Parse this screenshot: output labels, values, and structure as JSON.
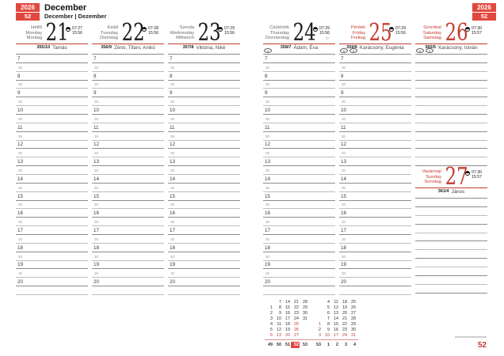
{
  "colors": {
    "accent_red": "#c43a2e",
    "box_red": "#e2473e"
  },
  "header_left": {
    "year": "2026",
    "week": "52",
    "month_title": "December",
    "month_subtitle": "December | Dezember"
  },
  "header_right": {
    "year": "2026",
    "week": "52"
  },
  "footer": {
    "page_number": "52"
  },
  "grid": {
    "hours": [
      "7",
      "8",
      "9",
      "10",
      "11",
      "12",
      "13",
      "14",
      "15",
      "16",
      "17",
      "18",
      "19",
      "20"
    ],
    "half_label": "30"
  },
  "days": [
    {
      "names": "Hétfő\nMonday\nMontag",
      "number": "21",
      "sunrise": "07:27",
      "sunset": "15:56",
      "ordinal": "355/10",
      "name_day": "Tamás",
      "holiday": false
    },
    {
      "names": "Kedd\nTuesday\nDienstag",
      "number": "22",
      "sunrise": "07:28",
      "sunset": "15:56",
      "ordinal": "356/9",
      "name_day": "Zénó, Tifani, Anikó",
      "holiday": false
    },
    {
      "names": "Szerda\nWednesday\nMittwoch",
      "number": "23",
      "sunrise": "07:29",
      "sunset": "15:56",
      "ordinal": "357/8",
      "name_day": "Viktória, Niké",
      "holiday": false
    },
    {
      "names": "Csütörtök\nThursday\nDonnerstag",
      "number": "24",
      "sunrise": "07:29",
      "sunset": "15:56",
      "ordinal": "358/7",
      "name_day": "Ádám, Éva",
      "holiday": false,
      "moon_symbol": "○",
      "markers": 1
    },
    {
      "names": "Péntek\nFriday\nFreitag",
      "number": "25",
      "sunrise": "07:29",
      "sunset": "15:56",
      "ordinal": "359/6",
      "name_day": "Karácsony, Eugénia",
      "holiday": true,
      "markers": 2
    },
    {
      "names": "Szombat\nSaturday\nSamstag",
      "number": "26",
      "sunrise": "07:30",
      "sunset": "15:57",
      "ordinal": "360/5",
      "name_day": "Karácsony, István",
      "holiday": true,
      "markers": 2
    },
    {
      "names": "Vasárnap\nSunday\nSonntag",
      "number": "27",
      "sunrise": "07:30",
      "sunset": "15:57",
      "ordinal": "361/4",
      "name_day": "János",
      "holiday": true
    }
  ],
  "mini_calendar": {
    "months": [
      {
        "rows": [
          [
            "",
            "7",
            "14",
            "21",
            "28"
          ],
          [
            "1",
            "8",
            "15",
            "22",
            "29"
          ],
          [
            "2",
            "9",
            "16",
            "23",
            "30"
          ],
          [
            "3",
            "10",
            "17",
            "24",
            "31"
          ],
          [
            "4",
            "11",
            "18",
            "25",
            ""
          ],
          [
            "5",
            "12",
            "19",
            "26",
            ""
          ],
          [
            "6",
            "13",
            "20",
            "27",
            ""
          ]
        ],
        "red_days": [
          "6",
          "13",
          "20",
          "25",
          "26",
          "27"
        ]
      },
      {
        "rows": [
          [
            "",
            "4",
            "11",
            "18",
            "25"
          ],
          [
            "",
            "5",
            "12",
            "19",
            "26"
          ],
          [
            "",
            "6",
            "13",
            "20",
            "27"
          ],
          [
            "",
            "7",
            "14",
            "21",
            "28"
          ],
          [
            "1",
            "8",
            "15",
            "22",
            "29"
          ],
          [
            "2",
            "9",
            "16",
            "23",
            "30"
          ],
          [
            "3",
            "10",
            "17",
            "24",
            "31"
          ]
        ],
        "red_days": [
          "1",
          "3",
          "10",
          "17",
          "24",
          "31"
        ]
      }
    ],
    "week_numbers": [
      "49",
      "50",
      "51",
      "52",
      "53",
      "53",
      "1",
      "2",
      "3",
      "4"
    ],
    "current_week": "52"
  }
}
